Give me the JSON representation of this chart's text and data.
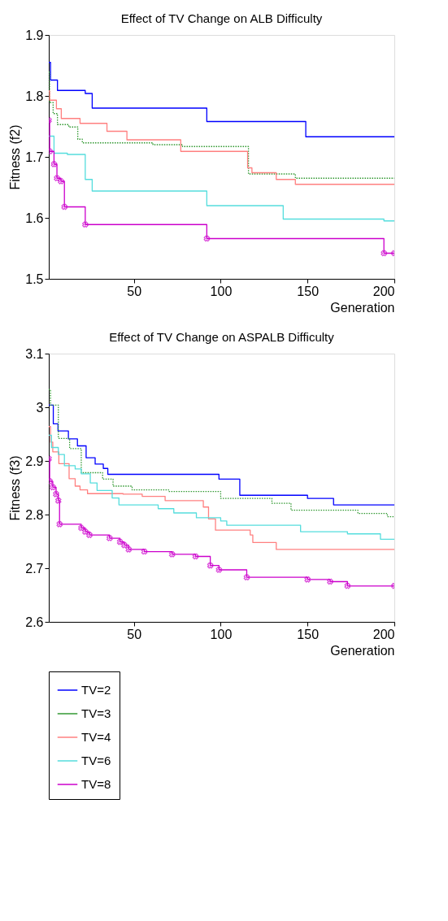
{
  "chart_data": [
    {
      "type": "step",
      "title": "Effect of TV Change on ALB Difficulty",
      "xlabel": "Generation",
      "ylabel": "Fitness (f2)",
      "xlim": [
        1,
        200
      ],
      "xticks": [
        50,
        100,
        150,
        200
      ],
      "ylim": [
        1.5,
        1.9
      ],
      "yticks": [
        1.5,
        1.6,
        1.7,
        1.8,
        1.9
      ],
      "grid": false,
      "legend": false,
      "series": [
        {
          "color": "#0000ff",
          "line_style": "solid",
          "x": [
            1,
            2,
            6,
            22,
            26,
            92,
            149,
            200
          ],
          "values": [
            1.855,
            1.826,
            1.809,
            1.804,
            1.78,
            1.758,
            1.733,
            1.733
          ]
        },
        {
          "color": "#339933",
          "line_style": "dotted",
          "x": [
            1,
            1.5,
            3.5,
            6,
            12.5,
            17.7,
            20.3,
            61,
            78,
            116,
            143,
            200
          ],
          "values": [
            1.839,
            1.789,
            1.771,
            1.753,
            1.749,
            1.729,
            1.723,
            1.72,
            1.717,
            1.672,
            1.665,
            1.665
          ]
        },
        {
          "color": "#ff8080",
          "line_style": "solid",
          "x": [
            1,
            1.5,
            5.4,
            8.2,
            19,
            34.5,
            46,
            77,
            115.5,
            118,
            132,
            143,
            200
          ],
          "values": [
            1.808,
            1.793,
            1.779,
            1.763,
            1.755,
            1.742,
            1.728,
            1.709,
            1.682,
            1.674,
            1.663,
            1.655,
            1.655
          ]
        },
        {
          "color": "#55dddd",
          "line_style": "solid",
          "x": [
            1,
            4,
            11.7,
            22,
            26,
            92,
            136,
            194,
            200
          ],
          "values": [
            1.734,
            1.706,
            1.704,
            1.663,
            1.644,
            1.62,
            1.598,
            1.595,
            1.595
          ]
        },
        {
          "color": "#cc00cc",
          "line_style": "solid",
          "marker": "cross",
          "x": [
            1,
            1.5,
            4,
            5.7,
            8,
            10,
            22,
            92,
            194,
            200
          ],
          "values": [
            1.76,
            1.709,
            1.688,
            1.665,
            1.66,
            1.618,
            1.589,
            1.566,
            1.542,
            1.542
          ]
        }
      ]
    },
    {
      "type": "step",
      "title": "Effect of TV Change on ASPALB Difficulty",
      "xlabel": "Generation",
      "ylabel": "Fitness (f3)",
      "xlim": [
        1,
        200
      ],
      "xticks": [
        50,
        100,
        150,
        200
      ],
      "ylim": [
        2.6,
        3.1
      ],
      "yticks": [
        2.6,
        2.7,
        2.8,
        2.9,
        3,
        3.1
      ],
      "grid": false,
      "legend": "bottom left",
      "series": [
        {
          "name": "TV=2",
          "color": "#0000ff",
          "line_style": "solid",
          "x": [
            1,
            3.6,
            6.3,
            12.3,
            17.5,
            22.5,
            27.7,
            32.4,
            35,
            99,
            111,
            150,
            165,
            200
          ],
          "values": [
            3.004,
            2.969,
            2.956,
            2.941,
            2.928,
            2.906,
            2.894,
            2.886,
            2.875,
            2.866,
            2.836,
            2.83,
            2.818,
            2.818
          ]
        },
        {
          "name": "TV=3",
          "color": "#339933",
          "line_style": "dotted",
          "x": [
            1,
            2,
            6.5,
            13,
            19.7,
            32,
            38,
            49,
            70,
            100,
            129.5,
            140.5,
            179,
            196,
            200
          ],
          "values": [
            3.033,
            3.004,
            2.942,
            2.923,
            2.878,
            2.866,
            2.853,
            2.846,
            2.843,
            2.83,
            2.821,
            2.808,
            2.802,
            2.796,
            2.796
          ]
        },
        {
          "name": "TV=4",
          "color": "#ff8080",
          "line_style": "solid",
          "x": [
            1,
            2,
            3.3,
            6.8,
            12.7,
            16.2,
            19,
            23.3,
            43.8,
            54.8,
            68,
            90,
            93,
            97,
            117,
            118.5,
            132,
            200
          ],
          "values": [
            2.964,
            2.935,
            2.917,
            2.895,
            2.867,
            2.853,
            2.846,
            2.839,
            2.838,
            2.834,
            2.826,
            2.814,
            2.792,
            2.771,
            2.762,
            2.748,
            2.735,
            2.735
          ]
        },
        {
          "name": "TV=6",
          "color": "#55dddd",
          "line_style": "solid",
          "x": [
            1,
            2.5,
            6.5,
            10,
            16.2,
            19.7,
            24.9,
            28.8,
            37.5,
            41.4,
            64,
            73,
            86,
            100,
            103.5,
            146,
            173,
            192,
            200
          ],
          "values": [
            2.948,
            2.925,
            2.912,
            2.891,
            2.885,
            2.876,
            2.859,
            2.845,
            2.831,
            2.818,
            2.811,
            2.803,
            2.794,
            2.788,
            2.78,
            2.768,
            2.764,
            2.754,
            2.754
          ]
        },
        {
          "name": "TV=8",
          "color": "#cc00cc",
          "line_style": "solid",
          "marker": "cross",
          "x": [
            1,
            1.5,
            3.3,
            5.2,
            6.5,
            7.2,
            19.7,
            22,
            24.4,
            36,
            42,
            44.5,
            47,
            56,
            72,
            85.5,
            94,
            99,
            115,
            150,
            163,
            173,
            200
          ],
          "values": [
            2.904,
            2.862,
            2.851,
            2.838,
            2.826,
            2.782,
            2.775,
            2.768,
            2.762,
            2.756,
            2.749,
            2.743,
            2.735,
            2.731,
            2.726,
            2.722,
            2.705,
            2.697,
            2.683,
            2.679,
            2.675,
            2.667,
            2.667
          ]
        }
      ]
    }
  ]
}
